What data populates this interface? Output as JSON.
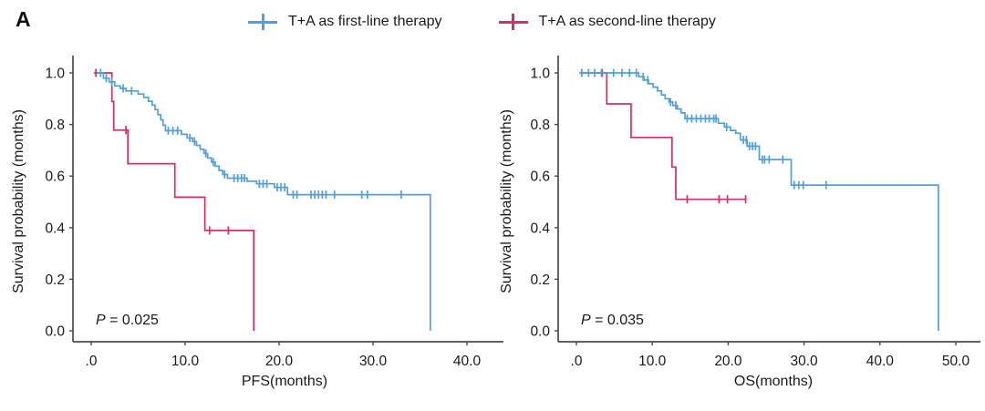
{
  "panel_label": "A",
  "colors": {
    "first_line": "#4da1e0",
    "second_line": "#d62e5e",
    "axis": "#4a4a4a",
    "text": "#1a1a1a"
  },
  "legend": {
    "items": [
      {
        "label": "T+A as first-line therapy",
        "color_key": "first_line",
        "marker": "plus"
      },
      {
        "label": "T+A as second-line therapy",
        "color_key": "second_line",
        "marker": "plus"
      }
    ]
  },
  "chart_data": [
    {
      "type": "line",
      "variant": "kaplan-meier-step",
      "title": "",
      "xlabel": "PFS(months)",
      "ylabel": "Survival probability (months)",
      "p_stat": {
        "symbol": "P",
        "rest": " = 0.025"
      },
      "xlim": [
        0,
        43
      ],
      "ylim": [
        0,
        1.0
      ],
      "grid": false,
      "legend_position": "top-center",
      "xtick_values": [
        0,
        10,
        20,
        30,
        40
      ],
      "xtick_labels": [
        ".0",
        "10.0",
        "20.0",
        "30.0",
        "40.0"
      ],
      "ytick_values": [
        0,
        0.2,
        0.4,
        0.6,
        0.8,
        1.0
      ],
      "ytick_labels": [
        "0.0",
        "0.2",
        "0.4",
        "0.6",
        "0.8",
        "1.0"
      ],
      "series": [
        {
          "name": "T+A as first-line therapy",
          "color_key": "first_line",
          "steps": [
            [
              0.6,
              1.0
            ],
            [
              1.3,
              0.98
            ],
            [
              1.9,
              0.965
            ],
            [
              2.5,
              0.95
            ],
            [
              3.1,
              0.94
            ],
            [
              3.7,
              0.93
            ],
            [
              5.0,
              0.918
            ],
            [
              5.6,
              0.905
            ],
            [
              6.1,
              0.89
            ],
            [
              6.5,
              0.875
            ],
            [
              6.8,
              0.858
            ],
            [
              7.1,
              0.838
            ],
            [
              7.4,
              0.818
            ],
            [
              7.65,
              0.797
            ],
            [
              7.9,
              0.776
            ],
            [
              9.6,
              0.762
            ],
            [
              10.2,
              0.748
            ],
            [
              10.8,
              0.734
            ],
            [
              11.2,
              0.719
            ],
            [
              11.6,
              0.704
            ],
            [
              12.0,
              0.688
            ],
            [
              12.4,
              0.67
            ],
            [
              12.8,
              0.654
            ],
            [
              13.2,
              0.638
            ],
            [
              13.6,
              0.622
            ],
            [
              14.0,
              0.606
            ],
            [
              14.5,
              0.592
            ],
            [
              16.6,
              0.58
            ],
            [
              17.6,
              0.57
            ],
            [
              19.5,
              0.556
            ],
            [
              20.9,
              0.528
            ],
            [
              36.1,
              0.0
            ]
          ],
          "censors": [
            [
              1.0,
              1.0
            ],
            [
              1.6,
              0.98
            ],
            [
              2.2,
              0.965
            ],
            [
              3.4,
              0.94
            ],
            [
              4.3,
              0.93
            ],
            [
              8.2,
              0.776
            ],
            [
              8.7,
              0.776
            ],
            [
              9.2,
              0.776
            ],
            [
              10.5,
              0.748
            ],
            [
              11.0,
              0.734
            ],
            [
              12.2,
              0.688
            ],
            [
              13.0,
              0.654
            ],
            [
              14.2,
              0.606
            ],
            [
              15.2,
              0.592
            ],
            [
              15.6,
              0.592
            ],
            [
              16.0,
              0.592
            ],
            [
              16.3,
              0.592
            ],
            [
              17.9,
              0.57
            ],
            [
              18.3,
              0.57
            ],
            [
              18.7,
              0.57
            ],
            [
              19.8,
              0.556
            ],
            [
              20.2,
              0.556
            ],
            [
              20.6,
              0.556
            ],
            [
              21.5,
              0.528
            ],
            [
              21.9,
              0.528
            ],
            [
              23.4,
              0.528
            ],
            [
              23.8,
              0.528
            ],
            [
              24.2,
              0.528
            ],
            [
              24.6,
              0.528
            ],
            [
              25.0,
              0.528
            ],
            [
              25.9,
              0.528
            ],
            [
              28.8,
              0.528
            ],
            [
              29.4,
              0.528
            ],
            [
              33.0,
              0.528
            ]
          ]
        },
        {
          "name": "T+A as second-line therapy",
          "color_key": "second_line",
          "steps": [
            [
              0.3,
              1.0
            ],
            [
              2.2,
              0.889
            ],
            [
              2.4,
              0.778
            ],
            [
              3.9,
              0.648
            ],
            [
              8.9,
              0.518
            ],
            [
              12.1,
              0.389
            ],
            [
              17.3,
              0.0
            ]
          ],
          "censors": [
            [
              0.5,
              1.0
            ],
            [
              3.7,
              0.778
            ],
            [
              12.6,
              0.389
            ],
            [
              14.6,
              0.389
            ]
          ]
        }
      ]
    },
    {
      "type": "line",
      "variant": "kaplan-meier-step",
      "title": "",
      "xlabel": "OS(months)",
      "ylabel": "Survival probability (months)",
      "p_stat": {
        "symbol": "P",
        "rest": " = 0.035"
      },
      "xlim": [
        0,
        53
      ],
      "ylim": [
        0,
        1.0
      ],
      "grid": false,
      "legend_position": "top-center",
      "xtick_values": [
        0,
        10,
        20,
        30,
        40,
        50
      ],
      "xtick_labels": [
        ".0",
        "10.0",
        "20.0",
        "30.0",
        "40.0",
        "50.0"
      ],
      "ytick_values": [
        0,
        0.2,
        0.4,
        0.6,
        0.8,
        1.0
      ],
      "ytick_labels": [
        "0.0",
        "0.2",
        "0.4",
        "0.6",
        "0.8",
        "1.0"
      ],
      "series": [
        {
          "name": "T+A as first-line therapy",
          "color_key": "first_line",
          "steps": [
            [
              0.5,
              1.0
            ],
            [
              8.2,
              0.985
            ],
            [
              8.9,
              0.972
            ],
            [
              9.5,
              0.958
            ],
            [
              10.1,
              0.945
            ],
            [
              10.7,
              0.93
            ],
            [
              11.2,
              0.915
            ],
            [
              11.7,
              0.9
            ],
            [
              12.2,
              0.887
            ],
            [
              12.7,
              0.874
            ],
            [
              13.3,
              0.86
            ],
            [
              13.8,
              0.845
            ],
            [
              14.3,
              0.823
            ],
            [
              18.7,
              0.805
            ],
            [
              19.5,
              0.79
            ],
            [
              20.3,
              0.777
            ],
            [
              21.0,
              0.766
            ],
            [
              21.6,
              0.74
            ],
            [
              22.5,
              0.716
            ],
            [
              24.1,
              0.664
            ],
            [
              28.3,
              0.565
            ],
            [
              47.7,
              0.0
            ]
          ],
          "censors": [
            [
              0.7,
              1.0
            ],
            [
              1.6,
              1.0
            ],
            [
              2.4,
              1.0
            ],
            [
              3.3,
              1.0
            ],
            [
              4.9,
              1.0
            ],
            [
              6.0,
              1.0
            ],
            [
              7.0,
              1.0
            ],
            [
              7.9,
              1.0
            ],
            [
              8.8,
              0.985
            ],
            [
              9.4,
              0.972
            ],
            [
              12.4,
              0.887
            ],
            [
              13.1,
              0.874
            ],
            [
              14.6,
              0.823
            ],
            [
              15.2,
              0.823
            ],
            [
              15.8,
              0.823
            ],
            [
              16.4,
              0.823
            ],
            [
              17.0,
              0.823
            ],
            [
              17.5,
              0.823
            ],
            [
              18.1,
              0.823
            ],
            [
              18.4,
              0.823
            ],
            [
              19.8,
              0.79
            ],
            [
              22.0,
              0.74
            ],
            [
              22.4,
              0.74
            ],
            [
              22.8,
              0.716
            ],
            [
              23.2,
              0.716
            ],
            [
              23.6,
              0.716
            ],
            [
              24.5,
              0.664
            ],
            [
              24.8,
              0.664
            ],
            [
              25.4,
              0.664
            ],
            [
              27.2,
              0.664
            ],
            [
              28.7,
              0.565
            ],
            [
              29.3,
              0.565
            ],
            [
              29.9,
              0.565
            ],
            [
              32.9,
              0.565
            ]
          ]
        },
        {
          "name": "T+A as second-line therapy",
          "color_key": "second_line",
          "steps": [
            [
              0.4,
              1.0
            ],
            [
              4.0,
              0.88
            ],
            [
              7.2,
              0.75
            ],
            [
              12.6,
              0.635
            ],
            [
              13.1,
              0.51
            ],
            [
              22.4,
              0.51
            ]
          ],
          "censors": [
            [
              3.4,
              1.0
            ],
            [
              14.6,
              0.51
            ],
            [
              18.8,
              0.51
            ],
            [
              19.9,
              0.51
            ],
            [
              22.3,
              0.51
            ]
          ]
        }
      ]
    }
  ]
}
